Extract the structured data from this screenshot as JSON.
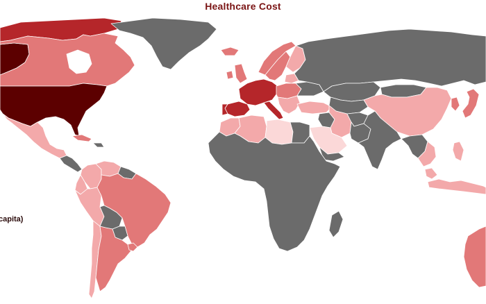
{
  "title": "Healthcare Cost",
  "legend_label": "capita)",
  "colors": {
    "highest": "#5c0000",
    "high": "#b5262a",
    "medium_high": "#d04a4a",
    "medium": "#e27878",
    "low": "#f3a9aa",
    "lowest": "#fbd8d8",
    "no_data": "#6b6b6b",
    "water": "#ffffff"
  },
  "regions": [
    {
      "name": "United States",
      "level": "highest"
    },
    {
      "name": "Canada",
      "level": "medium"
    },
    {
      "name": "Canadian Arctic Islands",
      "level": "high"
    },
    {
      "name": "Alaska",
      "level": "highest"
    },
    {
      "name": "Greenland",
      "level": "no_data"
    },
    {
      "name": "Mexico",
      "level": "low"
    },
    {
      "name": "Central America",
      "level": "no_data"
    },
    {
      "name": "Caribbean",
      "level": "no_data"
    },
    {
      "name": "Cuba",
      "level": "medium"
    },
    {
      "name": "Colombia",
      "level": "low"
    },
    {
      "name": "Venezuela",
      "level": "low"
    },
    {
      "name": "Guianas",
      "level": "no_data"
    },
    {
      "name": "Ecuador",
      "level": "low"
    },
    {
      "name": "Peru",
      "level": "low"
    },
    {
      "name": "Brazil",
      "level": "medium"
    },
    {
      "name": "Bolivia",
      "level": "no_data"
    },
    {
      "name": "Paraguay",
      "level": "no_data"
    },
    {
      "name": "Chile",
      "level": "low"
    },
    {
      "name": "Argentina",
      "level": "medium"
    },
    {
      "name": "Uruguay",
      "level": "medium"
    },
    {
      "name": "Iceland",
      "level": "medium"
    },
    {
      "name": "Norway",
      "level": "medium"
    },
    {
      "name": "Sweden",
      "level": "medium"
    },
    {
      "name": "Finland",
      "level": "low"
    },
    {
      "name": "United Kingdom",
      "level": "medium"
    },
    {
      "name": "Ireland",
      "level": "medium"
    },
    {
      "name": "Western Europe",
      "level": "high"
    },
    {
      "name": "Spain",
      "level": "high"
    },
    {
      "name": "Portugal",
      "level": "high"
    },
    {
      "name": "Italy",
      "level": "high"
    },
    {
      "name": "Central Europe",
      "level": "medium"
    },
    {
      "name": "Balkans",
      "level": "low"
    },
    {
      "name": "Baltics",
      "level": "low"
    },
    {
      "name": "Ukraine",
      "level": "no_data"
    },
    {
      "name": "Turkey",
      "level": "low"
    },
    {
      "name": "Russia",
      "level": "no_data"
    },
    {
      "name": "Kazakhstan",
      "level": "no_data"
    },
    {
      "name": "Central Asia",
      "level": "no_data"
    },
    {
      "name": "Iran",
      "level": "low"
    },
    {
      "name": "Iraq",
      "level": "no_data"
    },
    {
      "name": "Saudi Arabia",
      "level": "lowest"
    },
    {
      "name": "Yemen",
      "level": "no_data"
    },
    {
      "name": "Afghanistan",
      "level": "no_data"
    },
    {
      "name": "Pakistan",
      "level": "no_data"
    },
    {
      "name": "India",
      "level": "no_data"
    },
    {
      "name": "China",
      "level": "low"
    },
    {
      "name": "Mongolia",
      "level": "no_data"
    },
    {
      "name": "Korea",
      "level": "medium"
    },
    {
      "name": "Japan",
      "level": "medium"
    },
    {
      "name": "Southeast Asia",
      "level": "no_data"
    },
    {
      "name": "Thailand",
      "level": "low"
    },
    {
      "name": "Malaysia",
      "level": "low"
    },
    {
      "name": "Indonesia",
      "level": "low"
    },
    {
      "name": "Philippines",
      "level": "low"
    },
    {
      "name": "Morocco",
      "level": "low"
    },
    {
      "name": "Algeria",
      "level": "low"
    },
    {
      "name": "Libya",
      "level": "lowest"
    },
    {
      "name": "Egypt",
      "level": "no_data"
    },
    {
      "name": "Sub-Saharan Africa",
      "level": "no_data"
    },
    {
      "name": "Madagascar",
      "level": "no_data"
    },
    {
      "name": "Australia",
      "level": "medium"
    }
  ]
}
